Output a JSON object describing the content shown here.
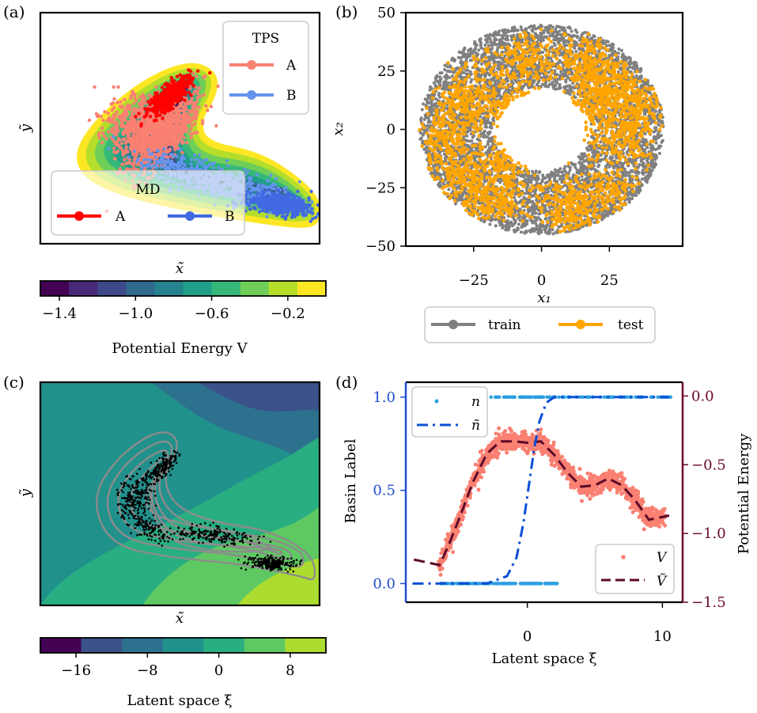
{
  "panel_labels": [
    "(a)",
    "(b)",
    "(c)",
    "(d)"
  ],
  "colors": {
    "tps_a": "#fa8072",
    "tps_b": "#6495ed",
    "md_a": "#ff0000",
    "md_b": "#4169e1",
    "train": "#808080",
    "test": "#ffa500",
    "n_points": "#2b9fe0",
    "n_tilde": "#0b4fd6",
    "v_points": "#fa8072",
    "v_tilde": "#5c0a2a",
    "left_axis": "#1f4fd0",
    "right_axis": "#6b0a2e",
    "contour": "#8c8c8c",
    "latent_points": "#000000"
  },
  "chart_data": [
    {
      "id": "a",
      "type": "heatmap",
      "xlabel": "x̃",
      "ylabel": "ỹ",
      "legend_tps": {
        "title": "TPS",
        "entries": [
          "A",
          "B"
        ]
      },
      "legend_md": {
        "title": "MD",
        "entries": [
          "A",
          "B"
        ]
      },
      "colorbar": {
        "label": "Potential Energy V",
        "ticks": [
          "−1.4",
          "−1.0",
          "−0.6",
          "−0.2"
        ],
        "tick_values": [
          -1.4,
          -1.0,
          -0.6,
          -0.2
        ],
        "range": [
          -1.5,
          0.0
        ],
        "colors": [
          "#440154",
          "#482878",
          "#3e4989",
          "#31688e",
          "#26828e",
          "#1f9e89",
          "#35b779",
          "#6ece58",
          "#b5de2b",
          "#fde725"
        ]
      }
    },
    {
      "id": "b",
      "type": "scatter",
      "xlabel": "x₁",
      "ylabel": "x₂",
      "x_ticks": [
        "−25",
        "0",
        "25"
      ],
      "x_tick_values": [
        -25,
        0,
        25
      ],
      "y_ticks": [
        "50",
        "25",
        "0",
        "−25",
        "−50"
      ],
      "y_tick_values": [
        50,
        25,
        0,
        -25,
        -50
      ],
      "xlim": [
        -50,
        52
      ],
      "ylim": [
        -50,
        50
      ],
      "ring": {
        "inner_radius": 18,
        "outer_radius": 45
      },
      "legend": [
        "train",
        "test"
      ]
    },
    {
      "id": "c",
      "type": "heatmap",
      "xlabel": "x̃",
      "ylabel": "ỹ",
      "colorbar": {
        "label": "Latent space ξ",
        "ticks": [
          "−16",
          "−8",
          "0",
          "8"
        ],
        "tick_values": [
          -16,
          -8,
          0,
          8
        ],
        "range": [
          -20,
          12
        ],
        "colors": [
          "#440154",
          "#3b528b",
          "#2c728e",
          "#21918c",
          "#28ae80",
          "#5ec962",
          "#addc30"
        ]
      }
    },
    {
      "id": "d",
      "type": "line",
      "xlabel": "Latent space ξ",
      "ylabel_left": "Basin Label",
      "ylabel_right": "Potential Energy",
      "x_ticks": [
        "0",
        "10"
      ],
      "x_tick_values": [
        0,
        10
      ],
      "xlim": [
        -9,
        11.5
      ],
      "left_ticks": [
        "0.0",
        "0.5",
        "1.0"
      ],
      "left_tick_values": [
        0.0,
        0.5,
        1.0
      ],
      "left_ylim": [
        -0.1,
        1.08
      ],
      "right_ticks": [
        "0.0",
        "−0.5",
        "−1.0",
        "−1.5"
      ],
      "right_tick_values": [
        0.0,
        -0.5,
        -1.0,
        -1.5
      ],
      "right_ylim": [
        -1.5,
        0.1
      ],
      "legend_left": [
        "n",
        "ñ"
      ],
      "legend_right": [
        "V",
        "Ṽ"
      ],
      "series": [
        {
          "name": "ñ",
          "x": [
            -8.5,
            -3,
            -1.5,
            -0.8,
            -0.3,
            0.1,
            0.5,
            0.9,
            1.4,
            2,
            3,
            10.5
          ],
          "y": [
            0,
            0.0,
            0.04,
            0.14,
            0.32,
            0.52,
            0.72,
            0.87,
            0.97,
            1.0,
            1.0,
            1.0
          ]
        },
        {
          "name": "Ṽ",
          "x": [
            -8.4,
            -6.5,
            -5.8,
            -5,
            -4,
            -3,
            -2,
            -1,
            0,
            1,
            2,
            3,
            4,
            5,
            6,
            7,
            8,
            9,
            10.5
          ],
          "y": [
            -1.19,
            -1.23,
            -1.08,
            -0.88,
            -0.62,
            -0.42,
            -0.33,
            -0.33,
            -0.34,
            -0.33,
            -0.43,
            -0.56,
            -0.66,
            -0.65,
            -0.6,
            -0.65,
            -0.76,
            -0.9,
            -0.87
          ]
        }
      ]
    }
  ]
}
